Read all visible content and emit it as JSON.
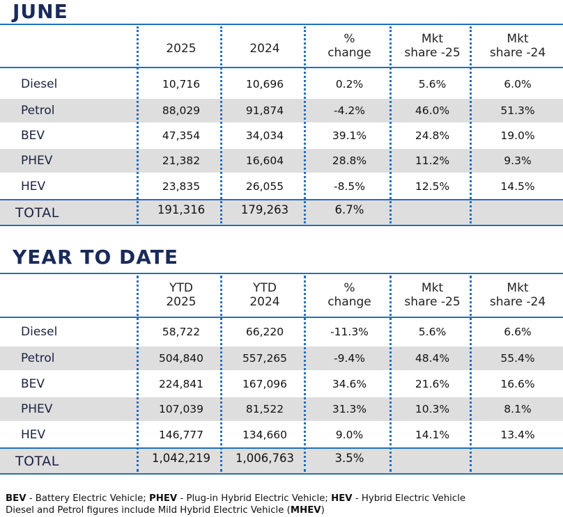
{
  "sections": [
    {
      "title": "JUNE",
      "headers": [
        {
          "l1": "",
          "l2": "2025"
        },
        {
          "l1": "",
          "l2": "2024"
        },
        {
          "l1": "%",
          "l2": "change"
        },
        {
          "l1": "Mkt",
          "l2": "share -25"
        },
        {
          "l1": "Mkt",
          "l2": "share -24"
        }
      ],
      "rows": [
        {
          "label": "Diesel",
          "values": [
            "10,716",
            "10,696",
            "0.2%",
            "5.6%",
            "6.0%"
          ]
        },
        {
          "label": "Petrol",
          "values": [
            "88,029",
            "91,874",
            "-4.2%",
            "46.0%",
            "51.3%"
          ]
        },
        {
          "label": "BEV",
          "values": [
            "47,354",
            "34,034",
            "39.1%",
            "24.8%",
            "19.0%"
          ]
        },
        {
          "label": "PHEV",
          "values": [
            "21,382",
            "16,604",
            "28.8%",
            "11.2%",
            "9.3%"
          ]
        },
        {
          "label": "HEV",
          "values": [
            "23,835",
            "26,055",
            "-8.5%",
            "12.5%",
            "14.5%"
          ]
        }
      ],
      "total": {
        "label": "TOTAL",
        "values": [
          "191,316",
          "179,263",
          "6.7%",
          "",
          ""
        ]
      }
    },
    {
      "title": "YEAR TO DATE",
      "headers": [
        {
          "l1": "YTD",
          "l2": "2025"
        },
        {
          "l1": "YTD",
          "l2": "2024"
        },
        {
          "l1": "%",
          "l2": "change"
        },
        {
          "l1": "Mkt",
          "l2": "share -25"
        },
        {
          "l1": "Mkt",
          "l2": "share -24"
        }
      ],
      "rows": [
        {
          "label": "Diesel",
          "values": [
            "58,722",
            "66,220",
            "-11.3%",
            "5.6%",
            "6.6%"
          ]
        },
        {
          "label": "Petrol",
          "values": [
            "504,840",
            "557,265",
            "-9.4%",
            "48.4%",
            "55.4%"
          ]
        },
        {
          "label": "BEV",
          "values": [
            "224,841",
            "167,096",
            "34.6%",
            "21.6%",
            "16.6%"
          ]
        },
        {
          "label": "PHEV",
          "values": [
            "107,039",
            "81,522",
            "31.3%",
            "10.3%",
            "8.1%"
          ]
        },
        {
          "label": "HEV",
          "values": [
            "146,777",
            "134,660",
            "9.0%",
            "14.1%",
            "13.4%"
          ]
        }
      ],
      "total": {
        "label": "TOTAL",
        "values": [
          "1,042,219",
          "1,006,763",
          "3.5%",
          "",
          ""
        ]
      }
    }
  ],
  "footer": {
    "line1": [
      {
        "bold": "BEV",
        "text": " - Battery Electric Vehicle; "
      },
      {
        "bold": "PHEV",
        "text": " - Plug-in Hybrid Electric Vehicle; "
      },
      {
        "bold": "HEV",
        "text": " - Hybrid Electric Vehicle"
      }
    ],
    "line2_text": "Diesel and Petrol figures include Mild Hybrid Electric Vehicle (",
    "line2_bold": "MHEV",
    "line2_end": ")"
  }
}
